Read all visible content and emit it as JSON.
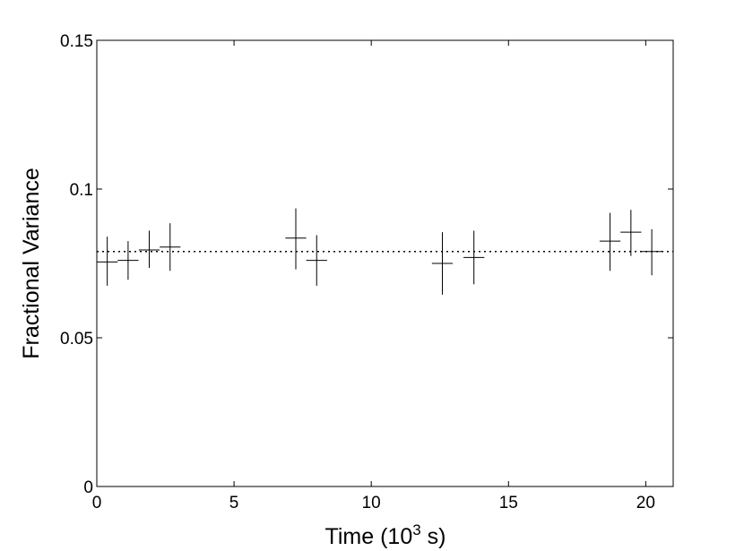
{
  "chart_data": {
    "type": "scatter",
    "title": "",
    "xlabel": "Time (10",
    "xlabel_superscript": "3",
    "xlabel_suffix": " s)",
    "ylabel": "Fractional Variance",
    "xlim": [
      0,
      21
    ],
    "ylim": [
      0,
      0.15
    ],
    "xticks": [
      0,
      5,
      10,
      15,
      20
    ],
    "xtick_labels": [
      "0",
      "5",
      "10",
      "15",
      "20"
    ],
    "yticks": [
      0,
      0.05,
      0.1,
      0.15
    ],
    "ytick_labels": [
      "0",
      "0.05",
      "0.1",
      "0.15"
    ],
    "grid": false,
    "reference_line": {
      "style": "dotted",
      "y": 0.079
    },
    "points": [
      {
        "x": 0.38,
        "y": 0.0755,
        "xerr": 0.38,
        "y_low": 0.0675,
        "y_high": 0.084
      },
      {
        "x": 1.14,
        "y": 0.076,
        "xerr": 0.38,
        "y_low": 0.0695,
        "y_high": 0.0825
      },
      {
        "x": 1.91,
        "y": 0.0795,
        "xerr": 0.38,
        "y_low": 0.0735,
        "y_high": 0.086
      },
      {
        "x": 2.67,
        "y": 0.0805,
        "xerr": 0.38,
        "y_low": 0.0725,
        "y_high": 0.0885
      },
      {
        "x": 7.25,
        "y": 0.0835,
        "xerr": 0.38,
        "y_low": 0.073,
        "y_high": 0.0935
      },
      {
        "x": 8.01,
        "y": 0.076,
        "xerr": 0.38,
        "y_low": 0.0675,
        "y_high": 0.0845
      },
      {
        "x": 12.59,
        "y": 0.075,
        "xerr": 0.38,
        "y_low": 0.0645,
        "y_high": 0.0855
      },
      {
        "x": 13.74,
        "y": 0.077,
        "xerr": 0.38,
        "y_low": 0.068,
        "y_high": 0.086
      },
      {
        "x": 18.7,
        "y": 0.0825,
        "xerr": 0.38,
        "y_low": 0.0725,
        "y_high": 0.092
      },
      {
        "x": 19.46,
        "y": 0.0855,
        "xerr": 0.38,
        "y_low": 0.0775,
        "y_high": 0.093
      },
      {
        "x": 20.22,
        "y": 0.079,
        "xerr": 0.38,
        "y_low": 0.071,
        "y_high": 0.0865
      }
    ]
  }
}
